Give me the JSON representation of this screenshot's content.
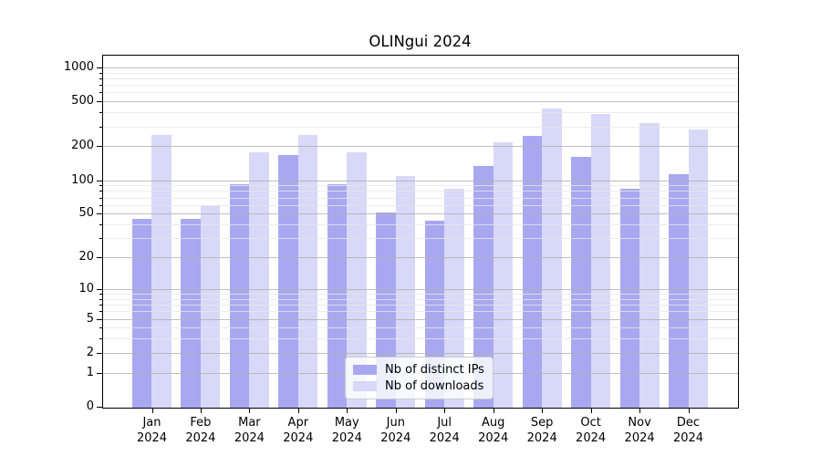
{
  "title": "OLINgui 2024",
  "chart_data": {
    "type": "bar",
    "title": "OLINgui 2024",
    "categories": [
      "Jan 2024",
      "Feb 2024",
      "Mar 2024",
      "Apr 2024",
      "May 2024",
      "Jun 2024",
      "Jul 2024",
      "Aug 2024",
      "Sep 2024",
      "Oct 2024",
      "Nov 2024",
      "Dec 2024"
    ],
    "x_tick_labels": [
      [
        "Jan",
        "2024"
      ],
      [
        "Feb",
        "2024"
      ],
      [
        "Mar",
        "2024"
      ],
      [
        "Apr",
        "2024"
      ],
      [
        "May",
        "2024"
      ],
      [
        "Jun",
        "2024"
      ],
      [
        "Jul",
        "2024"
      ],
      [
        "Aug",
        "2024"
      ],
      [
        "Sep",
        "2024"
      ],
      [
        "Oct",
        "2024"
      ],
      [
        "Nov",
        "2024"
      ],
      [
        "Dec",
        "2024"
      ]
    ],
    "series": [
      {
        "name": "Nb of distinct IPs",
        "color": "#a8a8f0",
        "values": [
          46,
          46,
          94,
          170,
          94,
          52,
          44,
          136,
          250,
          165,
          85,
          116
        ]
      },
      {
        "name": "Nb of downloads",
        "color": "#d8d8f8",
        "values": [
          255,
          61,
          180,
          255,
          180,
          110,
          86,
          222,
          440,
          395,
          325,
          290
        ]
      }
    ],
    "y_scale": "log10(1+v) symlog-like",
    "y_ticks": [
      0,
      1,
      2,
      5,
      10,
      20,
      50,
      100,
      200,
      500,
      1000
    ],
    "y_minor_ticks": [
      3,
      4,
      6,
      7,
      8,
      9,
      30,
      40,
      60,
      70,
      80,
      90,
      300,
      400,
      600,
      700,
      800,
      900
    ],
    "ylim": [
      0,
      1270
    ],
    "xlabel": "",
    "ylabel": "",
    "grid": "horizontal major+minor, drawn over bars",
    "legend_position": "lower center"
  },
  "colors": {
    "background": "#ffffff",
    "axis": "#000000",
    "grid_major": "#b0b0b0",
    "grid_minor": "#e7e7e7",
    "legend_border": "#cccccc",
    "bar_distinct_ips": "#a8a8f0",
    "bar_downloads": "#d8d8f8"
  }
}
